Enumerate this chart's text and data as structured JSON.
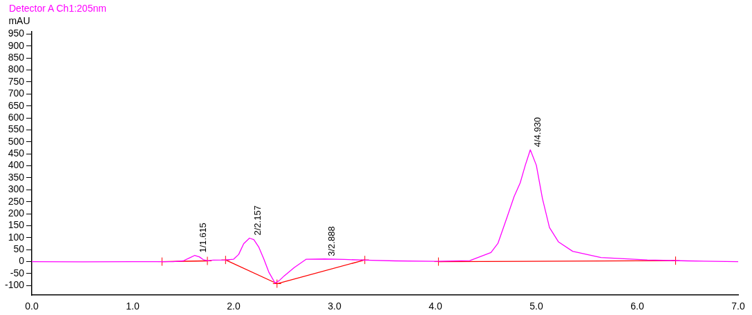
{
  "chart_data": {
    "type": "line",
    "ylabel": "mAU",
    "xlim": [
      0,
      7
    ],
    "xticks": [
      {
        "value": 0,
        "label": "0.0"
      },
      {
        "value": 1,
        "label": "1.0"
      },
      {
        "value": 2,
        "label": "2.0"
      },
      {
        "value": 3,
        "label": "3.0"
      },
      {
        "value": 4,
        "label": "4.0"
      },
      {
        "value": 5,
        "label": "5.0"
      },
      {
        "value": 6,
        "label": "6.0"
      },
      {
        "value": 7,
        "label": "7.0"
      }
    ],
    "ylim": [
      -140,
      960
    ],
    "yticks": [
      -100,
      -50,
      0,
      50,
      100,
      150,
      200,
      250,
      300,
      350,
      400,
      450,
      500,
      550,
      600,
      650,
      700,
      750,
      800,
      850,
      900,
      950
    ],
    "grid": false,
    "legend": "top left",
    "marker": "none",
    "series": [
      {
        "name": "Detector A Ch1:205nm",
        "color": "#ff00ff",
        "x": [
          0,
          0.5,
          1.0,
          1.4,
          1.5,
          1.56,
          1.615,
          1.66,
          1.7,
          1.74,
          1.8,
          1.92,
          2.0,
          2.05,
          2.1,
          2.157,
          2.2,
          2.25,
          2.3,
          2.35,
          2.41,
          2.45,
          2.5,
          2.6,
          2.72,
          2.9,
          3.1,
          3.3,
          3.6,
          4.0,
          4.34,
          4.55,
          4.62,
          4.71,
          4.78,
          4.84,
          4.89,
          4.94,
          5.0,
          5.06,
          5.13,
          5.22,
          5.36,
          5.64,
          6.1,
          6.5,
          7.0
        ],
        "values": [
          0,
          -1,
          0,
          0,
          3,
          15,
          26,
          20,
          8,
          4,
          6,
          7,
          10,
          30,
          75,
          98,
          92,
          60,
          10,
          -45,
          -89,
          -80,
          -60,
          -25,
          10,
          11,
          9,
          6,
          3,
          1,
          4,
          38,
          77,
          186,
          272,
          329,
          402,
          467,
          402,
          264,
          142,
          82,
          43,
          17,
          7,
          3,
          0
        ]
      },
      {
        "color": "#ff0000",
        "marker": "cross",
        "x": [
          1.29,
          1.74,
          1.76,
          1.92,
          2.43,
          3.3,
          3.5,
          4.03,
          6.38
        ],
        "values": [
          0,
          3,
          null,
          7,
          -92,
          7,
          null,
          0,
          4
        ]
      }
    ],
    "annotations": [
      {
        "text": "1/1.615",
        "x": 1.615,
        "y": 26
      },
      {
        "text": "2/2.157",
        "x": 2.157,
        "y": 98
      },
      {
        "text": "3/2.888",
        "x": 2.888,
        "y": 11
      },
      {
        "text": "4/4.930",
        "x": 4.93,
        "y": 467
      }
    ]
  }
}
